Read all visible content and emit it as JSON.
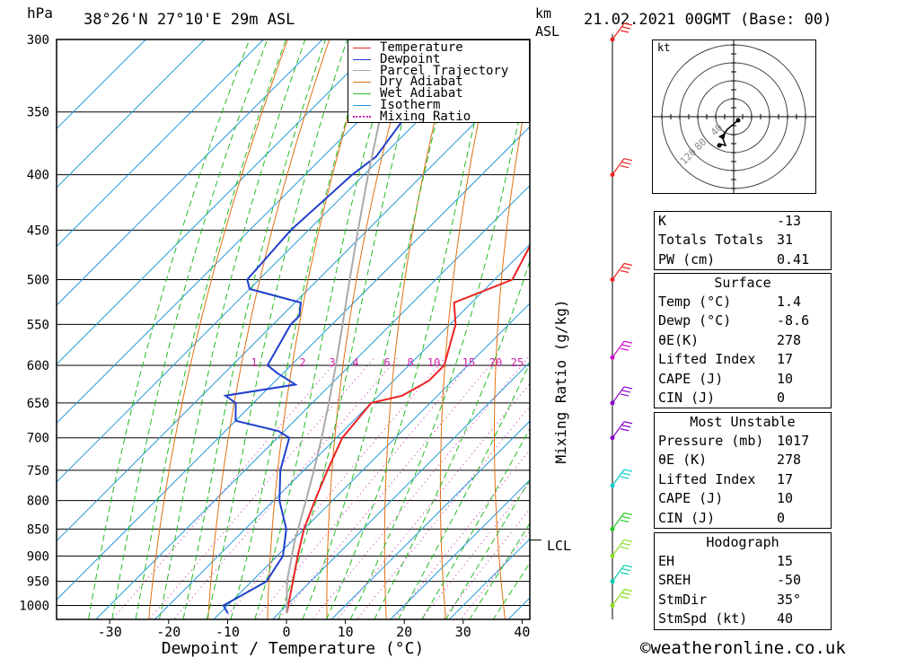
{
  "header": {
    "unit_hpa": "hPa",
    "location": "38°26'N  27°10'E  29m  ASL",
    "unit_km": "km",
    "unit_asl": "ASL",
    "datetime": "21.02.2021  00GMT  (Base: 00)"
  },
  "legend": {
    "items": [
      {
        "label": "Temperature",
        "color": "#ee2222",
        "style": "solid"
      },
      {
        "label": "Dewpoint",
        "color": "#1f3fcc",
        "style": "solid"
      },
      {
        "label": "Parcel Trajectory",
        "color": "#aaaaaa",
        "style": "solid"
      },
      {
        "label": "Dry Adiabat",
        "color": "#e07010",
        "style": "solid"
      },
      {
        "label": "Wet Adiabat",
        "color": "#22bb22",
        "style": "solid"
      },
      {
        "label": "Isotherm",
        "color": "#2299dd",
        "style": "solid"
      },
      {
        "label": "Mixing Ratio",
        "color": "#cc22aa",
        "style": "dotted"
      }
    ]
  },
  "chart_data": {
    "type": "line",
    "title": "",
    "xlabel": "Dewpoint / Temperature (°C)",
    "ylabel": "hPa",
    "right_axis_label": "Mixing Ratio (g/kg)",
    "x_ticks": [
      "-30",
      "-20",
      "-10",
      "0",
      "10",
      "20",
      "30",
      "40"
    ],
    "y_ticks": [
      "300",
      "350",
      "400",
      "450",
      "500",
      "550",
      "600",
      "650",
      "700",
      "750",
      "800",
      "850",
      "900",
      "950",
      "1000"
    ],
    "mixing_ratio_labels": [
      "1",
      "2",
      "3",
      "4",
      "6",
      "8",
      "10",
      "15",
      "20",
      "25"
    ],
    "lcl_label": "LCL",
    "lcl_pressure": 870,
    "series": [
      {
        "name": "Temperature",
        "pressure": [
          1017,
          1000,
          950,
          900,
          850,
          800,
          750,
          700,
          650,
          640,
          620,
          600,
          550,
          525,
          500,
          450,
          400,
          350,
          300
        ],
        "values": [
          1.4,
          0.3,
          -3,
          -6.5,
          -10,
          -13,
          -16,
          -19,
          -20,
          -16,
          -14,
          -14,
          -19,
          -23,
          -17,
          -21,
          -27,
          -31,
          -32
        ]
      },
      {
        "name": "Dewpoint",
        "pressure": [
          1017,
          1000,
          950,
          900,
          850,
          800,
          750,
          700,
          690,
          675,
          650,
          640,
          625,
          610,
          600,
          550,
          540,
          525,
          510,
          500,
          450,
          400,
          385,
          350,
          320
        ],
        "values": [
          -8.6,
          -10.7,
          -7.5,
          -9,
          -13,
          -19,
          -24,
          -28,
          -31,
          -40,
          -43,
          -46,
          -36,
          -41,
          -44,
          -47,
          -47,
          -49,
          -60,
          -62,
          -63,
          -62,
          -61,
          -63,
          -66
        ]
      },
      {
        "name": "Parcel Trajectory",
        "pressure": [
          1017,
          950,
          900,
          870,
          850,
          800,
          750,
          700,
          650,
          600,
          550,
          500,
          450,
          400,
          350,
          300
        ],
        "values": [
          1.4,
          -4,
          -7.5,
          -9.7,
          -11,
          -14.5,
          -18.3,
          -22.5,
          -27.2,
          -32.4,
          -38.2,
          -44.6,
          -51.6,
          -59.3,
          -67.7,
          -77
        ]
      }
    ],
    "wind_barbs": [
      {
        "pressure": 300,
        "color": "#ee2222"
      },
      {
        "pressure": 400,
        "color": "#ee2222"
      },
      {
        "pressure": 500,
        "color": "#ee2222"
      },
      {
        "pressure": 590,
        "color": "#cc00cc"
      },
      {
        "pressure": 650,
        "color": "#8800cc"
      },
      {
        "pressure": 700,
        "color": "#8800cc"
      },
      {
        "pressure": 775,
        "color": "#00cccc"
      },
      {
        "pressure": 850,
        "color": "#22cc22"
      },
      {
        "pressure": 900,
        "color": "#88dd22"
      },
      {
        "pressure": 950,
        "color": "#00ccaa"
      },
      {
        "pressure": 1000,
        "color": "#88dd22"
      }
    ]
  },
  "hodograph": {
    "unit": "kt",
    "ring_labels": [
      "40",
      "80",
      "120"
    ]
  },
  "indices": {
    "top": [
      {
        "key": "K",
        "value": "-13"
      },
      {
        "key": "Totals Totals",
        "value": "31"
      },
      {
        "key": "PW (cm)",
        "value": "0.41"
      }
    ],
    "surface_title": "Surface",
    "surface": [
      {
        "key": "Temp (°C)",
        "value": "1.4"
      },
      {
        "key": "Dewp (°C)",
        "value": "-8.6"
      },
      {
        "key": "θE(K)",
        "value": "278"
      },
      {
        "key": "Lifted Index",
        "value": "17"
      },
      {
        "key": "CAPE (J)",
        "value": "10"
      },
      {
        "key": "CIN (J)",
        "value": "0"
      }
    ],
    "mu_title": "Most Unstable",
    "mu": [
      {
        "key": "Pressure (mb)",
        "value": "1017"
      },
      {
        "key": "θE (K)",
        "value": "278"
      },
      {
        "key": "Lifted Index",
        "value": "17"
      },
      {
        "key": "CAPE (J)",
        "value": "10"
      },
      {
        "key": "CIN (J)",
        "value": "0"
      }
    ],
    "hodo_title": "Hodograph",
    "hodo": [
      {
        "key": "EH",
        "value": "15"
      },
      {
        "key": "SREH",
        "value": "-50"
      },
      {
        "key": "StmDir",
        "value": "35°"
      },
      {
        "key": "StmSpd (kt)",
        "value": "40"
      }
    ]
  },
  "footer": {
    "copyright": "©weatheronline.co.uk"
  }
}
